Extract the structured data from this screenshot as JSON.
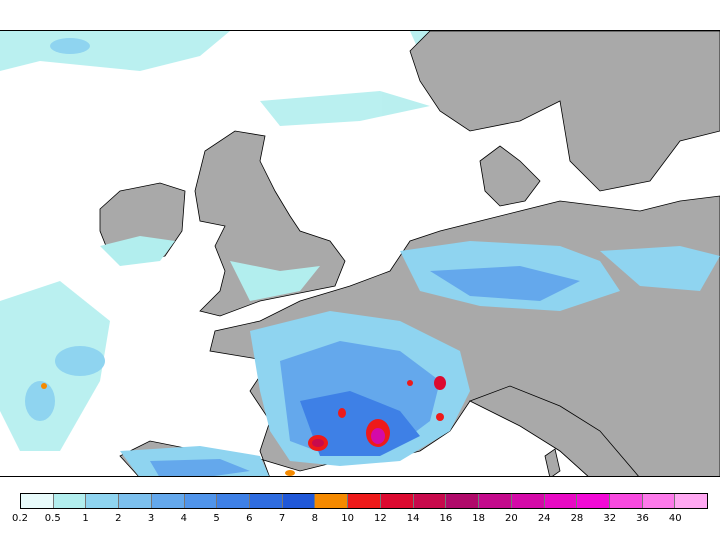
{
  "map": {
    "colors": {
      "land": "#a9a9a9",
      "sea": "#ffffff",
      "coastline": "#000000"
    },
    "features": {
      "regions": [
        "Ireland",
        "United Kingdom",
        "France",
        "Germany",
        "Denmark",
        "Spain",
        "Italy",
        "Alps"
      ],
      "precip_hotspots": [
        "Pyrenees",
        "Massif Central",
        "French Alps"
      ]
    }
  },
  "legend": {
    "ticks": [
      "0.2",
      "0.5",
      "1",
      "2",
      "3",
      "4",
      "5",
      "6",
      "7",
      "8",
      "10",
      "12",
      "14",
      "16",
      "18",
      "20",
      "24",
      "28",
      "32",
      "36",
      "40"
    ],
    "colors": [
      "#e8fbfb",
      "#b2eeee",
      "#8fd4f0",
      "#7cc0ee",
      "#64a8ec",
      "#5094ea",
      "#3e80e6",
      "#2e6ce0",
      "#2058d8",
      "#f58a00",
      "#ee1a1a",
      "#dc0a30",
      "#c80a4c",
      "#b00a6a",
      "#c40a8c",
      "#d40aa8",
      "#e80ac4",
      "#f20ad6",
      "#f84ae0",
      "#fc7aea",
      "#ffa8f2"
    ]
  }
}
